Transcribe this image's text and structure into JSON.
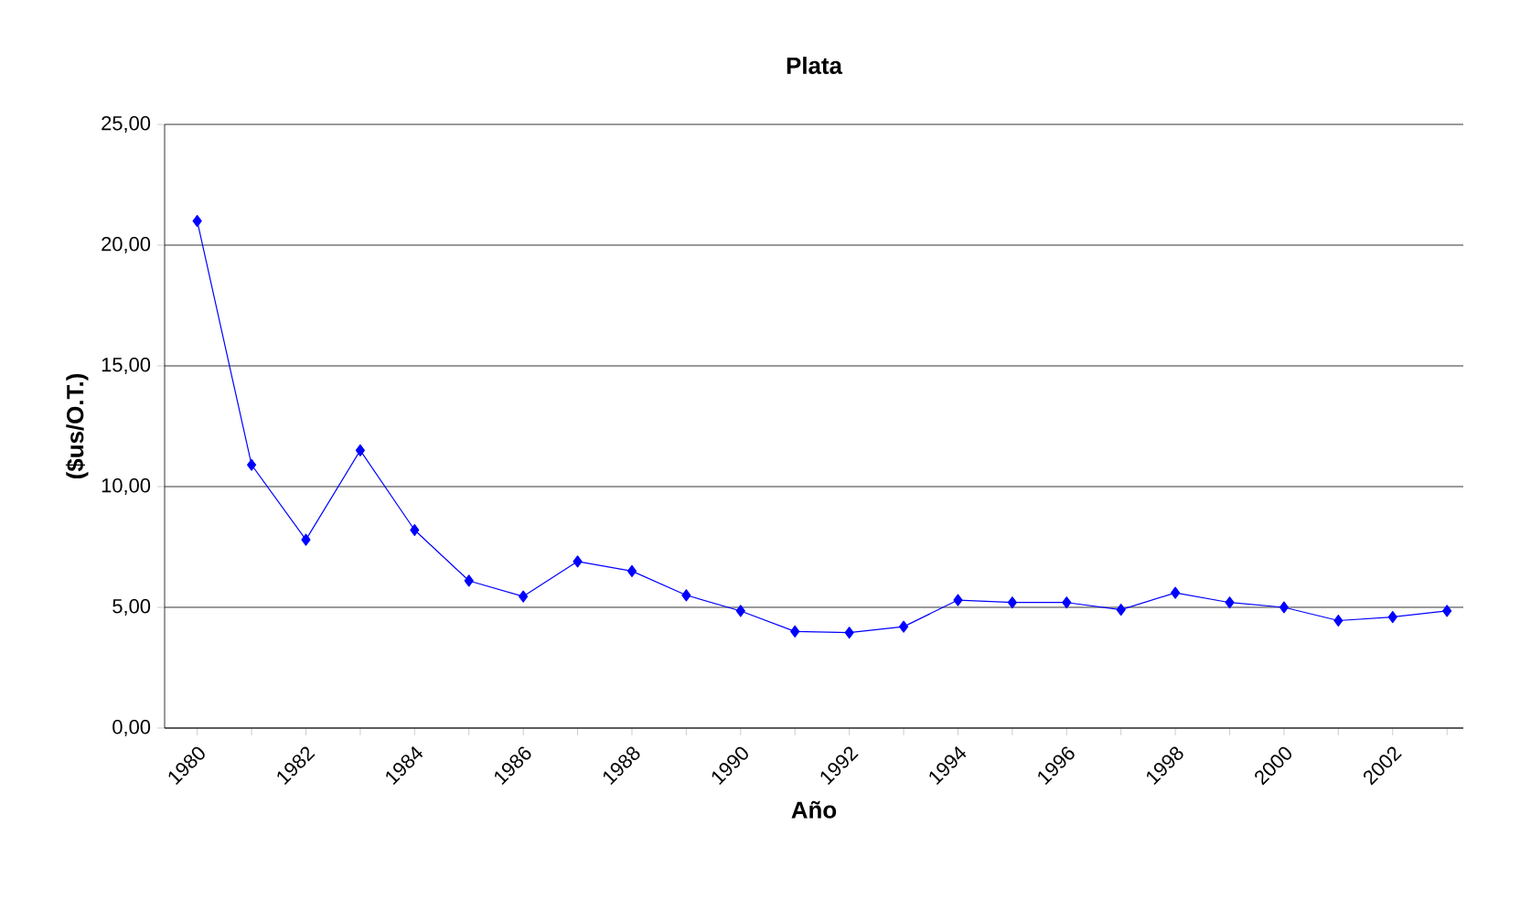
{
  "chart_data": {
    "type": "line",
    "title": "Plata",
    "xlabel": "Año",
    "ylabel": "($us/O.T.)",
    "categories": [
      "1980",
      null,
      "1982",
      null,
      "1984",
      null,
      "1986",
      null,
      "1988",
      null,
      "1990",
      null,
      "1992",
      null,
      "1994",
      null,
      "1996",
      null,
      "1998",
      null,
      "2000",
      null,
      "2002",
      null
    ],
    "series": [
      {
        "color": "#0000ff",
        "values": [
          21.0,
          10.9,
          7.8,
          11.5,
          8.2,
          6.1,
          5.45,
          6.9,
          6.5,
          5.5,
          4.85,
          4.0,
          3.95,
          4.2,
          5.3,
          5.2,
          5.2,
          4.9,
          5.6,
          5.2,
          5.0,
          4.45,
          4.6,
          4.85
        ]
      }
    ],
    "ylim": [
      0,
      25
    ],
    "yticks": [
      {
        "value": 0,
        "label": "0,00"
      },
      {
        "value": 5,
        "label": "5,00"
      },
      {
        "value": 10,
        "label": "10,00"
      },
      {
        "value": 15,
        "label": "15,00"
      },
      {
        "value": 20,
        "label": "20,00"
      },
      {
        "value": 25,
        "label": "25,00"
      }
    ],
    "grid": "y",
    "marker": "diamond",
    "line_style": "solid"
  }
}
